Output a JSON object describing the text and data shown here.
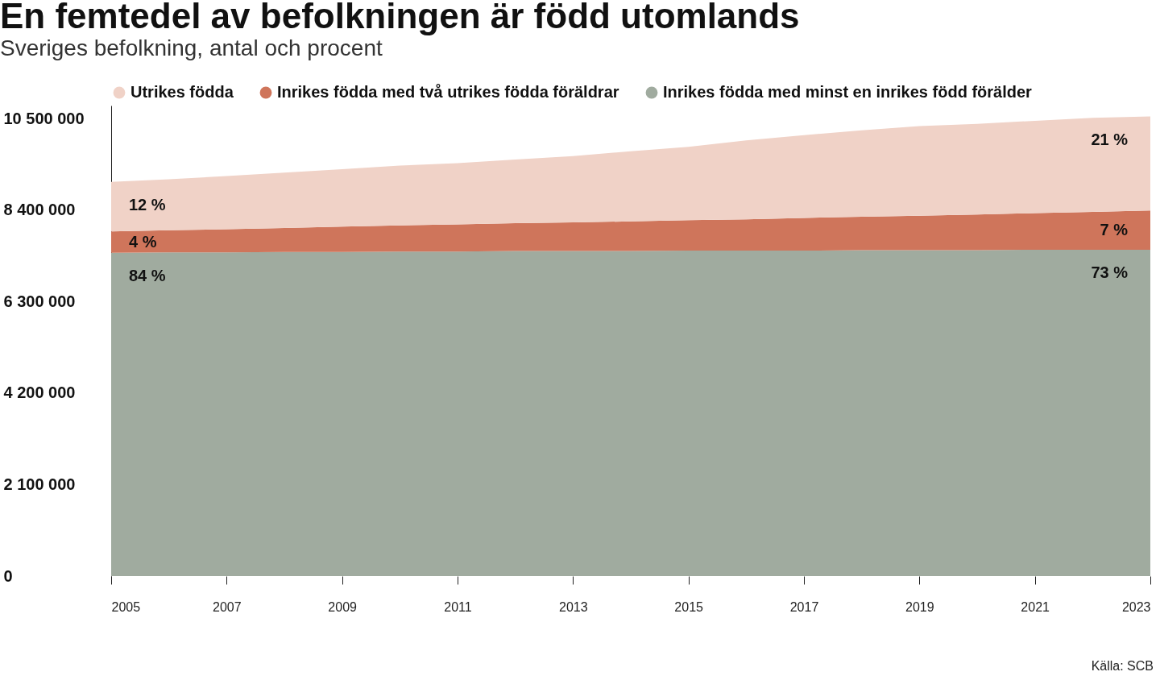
{
  "chart_data": {
    "type": "area",
    "stacked": true,
    "title": "En femtedel av befolkningen är född utomlands",
    "subtitle": "Sveriges befolkning, antal och procent",
    "x": [
      2005,
      2006,
      2007,
      2008,
      2009,
      2010,
      2011,
      2012,
      2013,
      2014,
      2015,
      2016,
      2017,
      2018,
      2019,
      2020,
      2021,
      2022,
      2023
    ],
    "xlim": [
      2005,
      2023
    ],
    "xticks": [
      2005,
      2007,
      2009,
      2011,
      2013,
      2015,
      2017,
      2019,
      2021,
      2023
    ],
    "ylim": [
      0,
      10800000
    ],
    "yticks": [
      0,
      {
        "value": 2100000,
        "label": "2 100 000"
      },
      {
        "value": 4200000,
        "label": "4 200 000"
      },
      {
        "value": 6300000,
        "label": "6 300 000"
      },
      {
        "value": 8400000,
        "label": "8 400 000"
      },
      {
        "value": 10500000,
        "label": "10 500 000"
      }
    ],
    "legend": "top",
    "series": [
      {
        "name": "Inrikes födda med minst en inrikes född förälder",
        "color": "#a0ab9f",
        "values": [
          7420000,
          7430000,
          7430000,
          7440000,
          7440000,
          7450000,
          7450000,
          7460000,
          7460000,
          7460000,
          7470000,
          7470000,
          7470000,
          7480000,
          7480000,
          7480000,
          7490000,
          7490000,
          7490000
        ]
      },
      {
        "name": "Inrikes födda med två utrikes födda föräldrar",
        "color": "#cf755b",
        "values": [
          490000,
          510000,
          530000,
          550000,
          580000,
          600000,
          620000,
          640000,
          660000,
          680000,
          700000,
          720000,
          750000,
          770000,
          790000,
          820000,
          840000,
          870000,
          900000
        ]
      },
      {
        "name": "Utrikes födda",
        "color": "#f0d2c7",
        "values": [
          1140000,
          1170000,
          1220000,
          1270000,
          1320000,
          1370000,
          1410000,
          1460000,
          1520000,
          1610000,
          1680000,
          1810000,
          1900000,
          1980000,
          2060000,
          2080000,
          2120000,
          2160000,
          2160000
        ]
      }
    ],
    "annotations": [
      "12 %",
      "4 %",
      "84 %",
      "21 %",
      "7 %",
      "73 %",
      "Källa: SCB"
    ]
  }
}
